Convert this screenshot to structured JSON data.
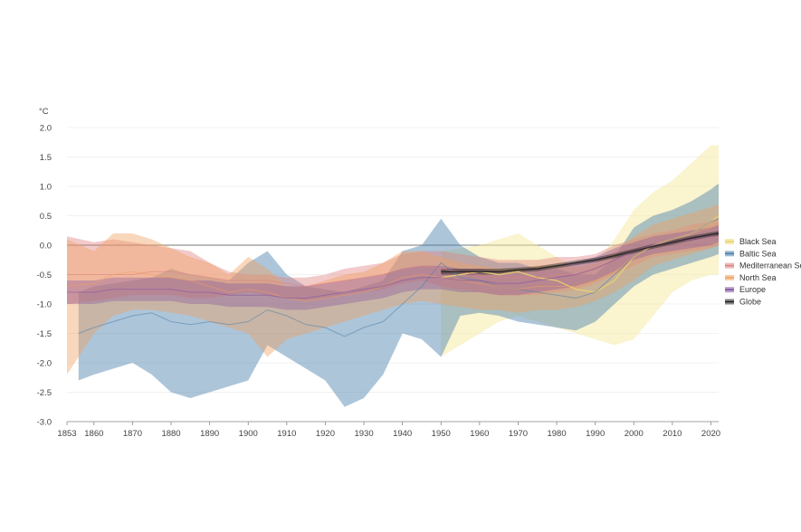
{
  "chart_data": {
    "type": "area",
    "title": "",
    "xlabel": "",
    "ylabel": "°C",
    "xlim": [
      1853,
      2022
    ],
    "ylim": [
      -3.0,
      2.0
    ],
    "x_ticks": [
      1853,
      1860,
      1870,
      1880,
      1890,
      1900,
      1910,
      1920,
      1930,
      1940,
      1950,
      1960,
      1970,
      1980,
      1990,
      2000,
      2010,
      2020
    ],
    "y_ticks": [
      -3.0,
      -2.5,
      -2.0,
      -1.5,
      -1.0,
      -0.5,
      0.0,
      0.5,
      1.0,
      1.5,
      2.0
    ],
    "y_tick_labels": [
      "-3.0",
      "-2.5",
      "-2.0",
      "-1.5",
      "-1.0",
      "-0.5",
      "0.0",
      "0.5",
      "1.0",
      "1.5",
      "2.0"
    ],
    "grid": "horizontal",
    "zero_line": true,
    "legend": "right",
    "series": [
      {
        "name": "Black Sea",
        "color": "#f5eaa0",
        "x": [
          1950,
          1955,
          1960,
          1965,
          1970,
          1975,
          1980,
          1985,
          1990,
          1995,
          2000,
          2005,
          2010,
          2015,
          2020,
          2022
        ],
        "mean": [
          -0.55,
          -0.5,
          -0.45,
          -0.5,
          -0.45,
          -0.55,
          -0.6,
          -0.75,
          -0.8,
          -0.6,
          -0.2,
          0.0,
          0.1,
          0.2,
          0.4,
          0.5
        ],
        "upper": [
          -0.1,
          -0.05,
          0.0,
          0.1,
          0.2,
          0.0,
          -0.2,
          -0.4,
          -0.3,
          0.1,
          0.6,
          0.9,
          1.1,
          1.4,
          1.7,
          1.7
        ],
        "lower": [
          -1.9,
          -1.7,
          -1.5,
          -1.3,
          -1.2,
          -1.3,
          -1.4,
          -1.5,
          -1.6,
          -1.7,
          -1.6,
          -1.2,
          -0.8,
          -0.6,
          -0.5,
          -0.5
        ]
      },
      {
        "name": "Baltic Sea",
        "color": "#4a7fab",
        "x": [
          1856,
          1860,
          1865,
          1870,
          1875,
          1880,
          1885,
          1890,
          1895,
          1900,
          1905,
          1910,
          1915,
          1920,
          1925,
          1930,
          1935,
          1940,
          1945,
          1950,
          1955,
          1960,
          1965,
          1970,
          1975,
          1980,
          1985,
          1990,
          1995,
          2000,
          2005,
          2010,
          2015,
          2020,
          2022
        ],
        "mean": [
          -1.5,
          -1.4,
          -1.3,
          -1.2,
          -1.15,
          -1.3,
          -1.35,
          -1.3,
          -1.35,
          -1.3,
          -1.1,
          -1.2,
          -1.35,
          -1.4,
          -1.55,
          -1.4,
          -1.3,
          -1.0,
          -0.7,
          -0.3,
          -0.55,
          -0.6,
          -0.7,
          -0.75,
          -0.8,
          -0.85,
          -0.9,
          -0.8,
          -0.5,
          -0.2,
          0.0,
          0.1,
          0.2,
          0.4,
          0.45
        ],
        "upper": [
          -0.8,
          -0.7,
          -0.65,
          -0.6,
          -0.55,
          -0.4,
          -0.5,
          -0.55,
          -0.6,
          -0.3,
          -0.1,
          -0.5,
          -0.7,
          -0.75,
          -0.8,
          -0.7,
          -0.6,
          -0.1,
          0.0,
          0.45,
          0.0,
          -0.2,
          -0.3,
          -0.3,
          -0.4,
          -0.4,
          -0.5,
          -0.5,
          -0.2,
          0.3,
          0.5,
          0.6,
          0.75,
          0.95,
          1.05
        ],
        "lower": [
          -2.3,
          -2.2,
          -2.1,
          -2.0,
          -2.2,
          -2.5,
          -2.6,
          -2.5,
          -2.4,
          -2.3,
          -1.7,
          -1.9,
          -2.1,
          -2.3,
          -2.75,
          -2.6,
          -2.2,
          -1.5,
          -1.6,
          -1.9,
          -1.2,
          -1.15,
          -1.2,
          -1.3,
          -1.35,
          -1.4,
          -1.45,
          -1.3,
          -1.0,
          -0.7,
          -0.5,
          -0.4,
          -0.3,
          -0.2,
          -0.15
        ]
      },
      {
        "name": "Mediterranean Sea",
        "color": "#e08080",
        "x": [
          1853,
          1860,
          1865,
          1870,
          1875,
          1880,
          1885,
          1890,
          1895,
          1900,
          1905,
          1910,
          1915,
          1920,
          1925,
          1930,
          1935,
          1940,
          1945,
          1950,
          1955,
          1960,
          1965,
          1970,
          1975,
          1980,
          1985,
          1990,
          1995,
          2000,
          2005,
          2010,
          2015,
          2020,
          2022
        ],
        "mean": [
          -0.5,
          -0.5,
          -0.5,
          -0.5,
          -0.45,
          -0.45,
          -0.5,
          -0.55,
          -0.6,
          -0.6,
          -0.6,
          -0.65,
          -0.7,
          -0.65,
          -0.6,
          -0.55,
          -0.5,
          -0.4,
          -0.35,
          -0.4,
          -0.45,
          -0.5,
          -0.55,
          -0.55,
          -0.55,
          -0.5,
          -0.5,
          -0.4,
          -0.25,
          -0.1,
          0.0,
          0.05,
          0.1,
          0.15,
          0.2
        ],
        "upper": [
          0.15,
          0.05,
          0.1,
          0.05,
          0.0,
          -0.05,
          -0.1,
          -0.3,
          -0.45,
          -0.5,
          -0.5,
          -0.55,
          -0.55,
          -0.5,
          -0.4,
          -0.35,
          -0.3,
          -0.15,
          -0.1,
          -0.1,
          -0.15,
          -0.2,
          -0.25,
          -0.25,
          -0.25,
          -0.2,
          -0.2,
          -0.15,
          0.0,
          0.1,
          0.2,
          0.25,
          0.35,
          0.4,
          0.45
        ],
        "lower": [
          -1.0,
          -0.95,
          -0.9,
          -0.85,
          -0.85,
          -0.85,
          -0.9,
          -0.9,
          -0.85,
          -0.8,
          -0.85,
          -0.9,
          -0.95,
          -0.9,
          -0.85,
          -0.8,
          -0.75,
          -0.65,
          -0.6,
          -0.7,
          -0.75,
          -0.8,
          -0.85,
          -0.85,
          -0.85,
          -0.8,
          -0.75,
          -0.65,
          -0.5,
          -0.35,
          -0.2,
          -0.15,
          -0.1,
          -0.05,
          0.0
        ]
      },
      {
        "name": "North Sea",
        "color": "#f0a060",
        "x": [
          1853,
          1860,
          1865,
          1870,
          1875,
          1880,
          1885,
          1890,
          1895,
          1900,
          1905,
          1910,
          1915,
          1920,
          1925,
          1930,
          1935,
          1940,
          1945,
          1950,
          1955,
          1960,
          1965,
          1970,
          1975,
          1980,
          1985,
          1990,
          1995,
          2000,
          2005,
          2010,
          2015,
          2020,
          2022
        ],
        "mean": [
          -0.7,
          -0.65,
          -0.5,
          -0.45,
          -0.5,
          -0.55,
          -0.6,
          -0.7,
          -0.8,
          -0.75,
          -0.8,
          -0.9,
          -0.95,
          -0.9,
          -0.85,
          -0.8,
          -0.7,
          -0.55,
          -0.5,
          -0.55,
          -0.6,
          -0.65,
          -0.7,
          -0.75,
          -0.7,
          -0.7,
          -0.7,
          -0.6,
          -0.45,
          -0.2,
          0.0,
          0.1,
          0.2,
          0.3,
          0.35
        ],
        "upper": [
          0.1,
          -0.1,
          0.2,
          0.2,
          0.1,
          -0.05,
          -0.2,
          -0.3,
          -0.5,
          -0.2,
          -0.4,
          -0.7,
          -0.7,
          -0.6,
          -0.5,
          -0.45,
          -0.3,
          -0.1,
          -0.1,
          -0.2,
          -0.3,
          -0.35,
          -0.4,
          -0.4,
          -0.35,
          -0.35,
          -0.35,
          -0.3,
          -0.1,
          0.15,
          0.35,
          0.45,
          0.55,
          0.65,
          0.7
        ],
        "lower": [
          -2.2,
          -1.5,
          -1.2,
          -1.1,
          -1.1,
          -1.15,
          -1.2,
          -1.3,
          -1.4,
          -1.5,
          -1.9,
          -1.6,
          -1.5,
          -1.4,
          -1.3,
          -1.2,
          -1.1,
          -1.0,
          -0.95,
          -1.0,
          -1.05,
          -1.1,
          -1.1,
          -1.15,
          -1.1,
          -1.1,
          -1.05,
          -0.95,
          -0.8,
          -0.6,
          -0.35,
          -0.25,
          -0.15,
          -0.05,
          0.0
        ]
      },
      {
        "name": "Europe",
        "color": "#8050a0",
        "x": [
          1853,
          1860,
          1865,
          1870,
          1875,
          1880,
          1885,
          1890,
          1895,
          1900,
          1905,
          1910,
          1915,
          1920,
          1925,
          1930,
          1935,
          1940,
          1945,
          1950,
          1955,
          1960,
          1965,
          1970,
          1975,
          1980,
          1985,
          1990,
          1995,
          2000,
          2005,
          2010,
          2015,
          2020,
          2022
        ],
        "mean": [
          -0.8,
          -0.8,
          -0.75,
          -0.75,
          -0.75,
          -0.75,
          -0.8,
          -0.8,
          -0.85,
          -0.85,
          -0.85,
          -0.9,
          -0.9,
          -0.85,
          -0.8,
          -0.75,
          -0.7,
          -0.6,
          -0.55,
          -0.55,
          -0.6,
          -0.6,
          -0.65,
          -0.65,
          -0.6,
          -0.55,
          -0.5,
          -0.4,
          -0.25,
          -0.1,
          0.0,
          0.05,
          0.1,
          0.15,
          0.2
        ],
        "upper": [
          -0.6,
          -0.6,
          -0.55,
          -0.55,
          -0.55,
          -0.55,
          -0.6,
          -0.6,
          -0.65,
          -0.65,
          -0.65,
          -0.7,
          -0.7,
          -0.65,
          -0.6,
          -0.55,
          -0.5,
          -0.4,
          -0.35,
          -0.35,
          -0.4,
          -0.4,
          -0.45,
          -0.45,
          -0.4,
          -0.35,
          -0.3,
          -0.2,
          -0.05,
          0.05,
          0.15,
          0.2,
          0.25,
          0.3,
          0.35
        ],
        "lower": [
          -1.0,
          -1.0,
          -0.95,
          -0.95,
          -0.95,
          -0.95,
          -1.0,
          -1.0,
          -1.05,
          -1.05,
          -1.05,
          -1.1,
          -1.1,
          -1.05,
          -1.0,
          -0.95,
          -0.9,
          -0.8,
          -0.75,
          -0.75,
          -0.8,
          -0.8,
          -0.85,
          -0.85,
          -0.8,
          -0.75,
          -0.7,
          -0.6,
          -0.45,
          -0.25,
          -0.15,
          -0.1,
          -0.05,
          0.0,
          0.05
        ]
      },
      {
        "name": "Globe",
        "color": "#222222",
        "x": [
          1950,
          1955,
          1960,
          1965,
          1970,
          1975,
          1980,
          1985,
          1990,
          1995,
          2000,
          2005,
          2010,
          2015,
          2020,
          2022
        ],
        "mean": [
          -0.45,
          -0.45,
          -0.45,
          -0.45,
          -0.42,
          -0.4,
          -0.35,
          -0.3,
          -0.25,
          -0.18,
          -0.1,
          -0.02,
          0.05,
          0.12,
          0.18,
          0.2
        ],
        "upper": [
          -0.4,
          -0.4,
          -0.4,
          -0.4,
          -0.38,
          -0.36,
          -0.31,
          -0.26,
          -0.21,
          -0.14,
          -0.06,
          0.02,
          0.09,
          0.16,
          0.22,
          0.24
        ],
        "lower": [
          -0.5,
          -0.5,
          -0.5,
          -0.5,
          -0.46,
          -0.44,
          -0.39,
          -0.34,
          -0.29,
          -0.22,
          -0.14,
          -0.06,
          0.01,
          0.08,
          0.14,
          0.16
        ]
      }
    ]
  }
}
